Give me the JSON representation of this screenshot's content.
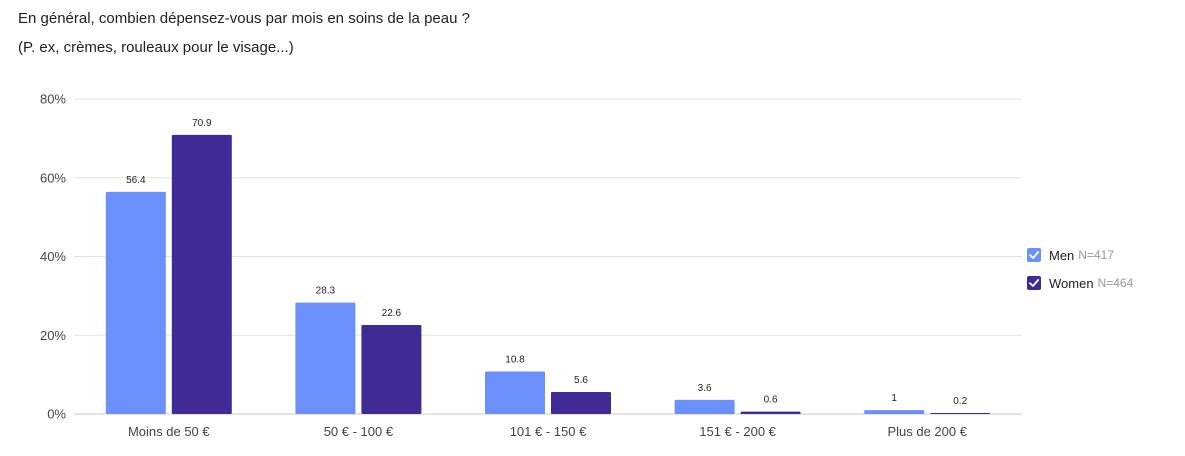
{
  "title_line1": "En général, combien dépensez-vous par mois en soins de la peau ?",
  "title_line2": "(P. ex, crèmes, rouleaux pour le visage...)",
  "colors": {
    "men": "#6b8ffb",
    "women": "#3f2a96",
    "grid": "#e3e3e3",
    "axis": "#c9c9c9"
  },
  "legend": [
    {
      "name": "Men",
      "n": "N=417",
      "icon": "check-icon"
    },
    {
      "name": "Women",
      "n": "N=464",
      "icon": "check-icon"
    }
  ],
  "chart_data": {
    "type": "bar",
    "categories": [
      "Moins de 50 €",
      "50 € - 100 €",
      "101 € - 150 €",
      "151 € - 200 €",
      "Plus de 200 €"
    ],
    "series": [
      {
        "name": "Men",
        "values": [
          56.4,
          28.3,
          10.8,
          3.6,
          1
        ]
      },
      {
        "name": "Women",
        "values": [
          70.9,
          22.6,
          5.6,
          0.6,
          0.2
        ]
      }
    ],
    "value_labels": [
      [
        "56.4",
        "28.3",
        "10.8",
        "3.6",
        "1"
      ],
      [
        "70.9",
        "22.6",
        "5.6",
        "0.6",
        "0.2"
      ]
    ],
    "yticks": [
      "0%",
      "20%",
      "40%",
      "60%",
      "80%"
    ],
    "ytick_values": [
      0,
      20,
      40,
      60,
      80
    ],
    "ylim": [
      0,
      80
    ],
    "grid": true,
    "legend_position": "right"
  }
}
